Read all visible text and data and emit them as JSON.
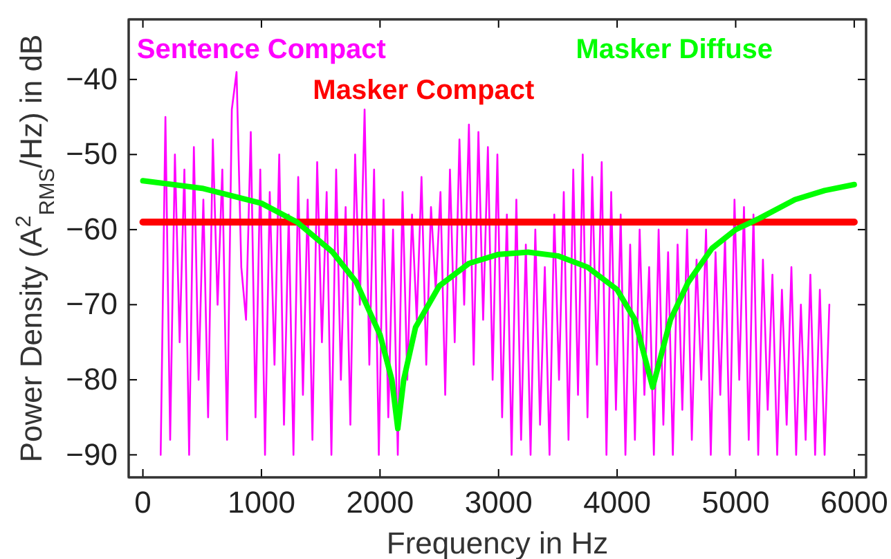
{
  "chart_data": {
    "type": "line",
    "xlabel": "Frequency in Hz",
    "ylabel": "Power Density (A$^{2}$$_{RMS}$/Hz) in dB",
    "xlim": [
      -120,
      6100
    ],
    "ylim": [
      -93,
      -32
    ],
    "xticks": [
      0,
      1000,
      2000,
      3000,
      4000,
      5000,
      6000
    ],
    "yticks": [
      -90,
      -80,
      -70,
      -60,
      -50,
      -40
    ],
    "grid": false,
    "legend": "top",
    "line_style": "solid",
    "marker": "none",
    "series": [
      {
        "name": "Sentence Compact",
        "color": "#ff00ff",
        "x": [
          150,
          190,
          230,
          270,
          310,
          350,
          390,
          430,
          470,
          510,
          550,
          590,
          630,
          670,
          710,
          750,
          790,
          830,
          870,
          910,
          950,
          990,
          1030,
          1070,
          1110,
          1150,
          1190,
          1230,
          1270,
          1310,
          1350,
          1390,
          1430,
          1470,
          1510,
          1550,
          1590,
          1630,
          1670,
          1710,
          1750,
          1790,
          1830,
          1870,
          1910,
          1950,
          1990,
          2030,
          2070,
          2110,
          2150,
          2190,
          2230,
          2270,
          2310,
          2350,
          2390,
          2430,
          2470,
          2510,
          2550,
          2590,
          2630,
          2670,
          2710,
          2750,
          2790,
          2830,
          2870,
          2910,
          2950,
          2990,
          3030,
          3070,
          3110,
          3150,
          3190,
          3230,
          3270,
          3310,
          3350,
          3390,
          3430,
          3470,
          3510,
          3550,
          3590,
          3630,
          3670,
          3710,
          3750,
          3790,
          3830,
          3870,
          3910,
          3950,
          3990,
          4030,
          4070,
          4110,
          4150,
          4190,
          4230,
          4270,
          4310,
          4350,
          4390,
          4430,
          4470,
          4510,
          4550,
          4590,
          4630,
          4670,
          4710,
          4750,
          4790,
          4830,
          4870,
          4910,
          4950,
          4990,
          5030,
          5070,
          5110,
          5150,
          5190,
          5230,
          5270,
          5310,
          5350,
          5390,
          5430,
          5470,
          5510,
          5550,
          5590,
          5630,
          5670,
          5710,
          5750,
          5790
        ],
        "values": [
          -90,
          -45,
          -88,
          -50,
          -75,
          -52,
          -90,
          -49,
          -80,
          -56,
          -85,
          -48,
          -70,
          -52,
          -88,
          -44,
          -39,
          -65,
          -72,
          -47,
          -85,
          -52,
          -90,
          -55,
          -78,
          -50,
          -86,
          -58,
          -90,
          -53,
          -82,
          -56,
          -88,
          -51,
          -75,
          -55,
          -90,
          -52,
          -80,
          -57,
          -86,
          -50,
          -70,
          -44,
          -78,
          -52,
          -90,
          -56,
          -85,
          -60,
          -90,
          -55,
          -80,
          -58,
          -72,
          -53,
          -78,
          -57,
          -68,
          -55,
          -82,
          -52,
          -75,
          -48,
          -70,
          -46,
          -78,
          -47,
          -72,
          -49,
          -80,
          -50,
          -85,
          -58,
          -90,
          -56,
          -88,
          -62,
          -90,
          -60,
          -86,
          -65,
          -90,
          -58,
          -80,
          -55,
          -88,
          -52,
          -82,
          -50,
          -85,
          -53,
          -78,
          -51,
          -90,
          -55,
          -84,
          -58,
          -90,
          -62,
          -88,
          -60,
          -82,
          -65,
          -90,
          -60,
          -86,
          -63,
          -90,
          -62,
          -84,
          -60,
          -88,
          -64,
          -80,
          -60,
          -90,
          -63,
          -82,
          -61,
          -90,
          -56,
          -80,
          -57,
          -88,
          -58,
          -90,
          -64,
          -84,
          -66,
          -90,
          -68,
          -86,
          -65,
          -90,
          -70,
          -88,
          -66,
          -90,
          -68,
          -90,
          -70
        ]
      },
      {
        "name": "Masker Compact",
        "color": "#ff0000",
        "x": [
          0,
          6000
        ],
        "values": [
          -59,
          -59
        ]
      },
      {
        "name": "Masker Diffuse",
        "color": "#00ff00",
        "x": [
          0,
          500,
          1000,
          1300,
          1600,
          1800,
          2000,
          2100,
          2150,
          2200,
          2300,
          2500,
          2750,
          3000,
          3250,
          3500,
          3750,
          4000,
          4150,
          4300,
          4450,
          4600,
          4800,
          5000,
          5200,
          5500,
          5750,
          6000
        ],
        "values": [
          -53.5,
          -54.5,
          -56.5,
          -59,
          -63,
          -67,
          -74,
          -80,
          -86.5,
          -80,
          -73,
          -67.5,
          -64.5,
          -63.3,
          -63,
          -63.5,
          -65,
          -68,
          -72,
          -81,
          -72,
          -67,
          -62.5,
          -60,
          -58.5,
          -56,
          -54.8,
          -54
        ]
      }
    ]
  }
}
